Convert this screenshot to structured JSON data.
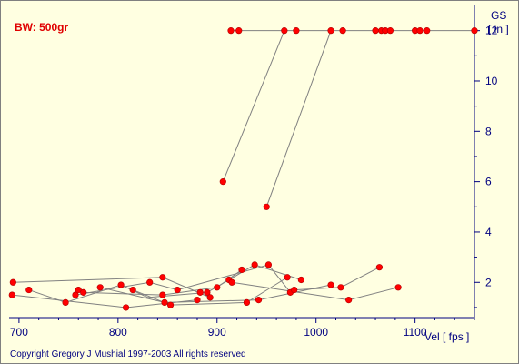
{
  "chart_data": {
    "type": "scatter",
    "title": "BW: 500gr",
    "xlabel": "Vel  [ fps ]",
    "ylabel_line1": "GS",
    "ylabel_line2": "[ in ]",
    "xlim": [
      690,
      1160
    ],
    "ylim": [
      0.6,
      13.0
    ],
    "x_ticks": [
      700,
      800,
      900,
      1000,
      1100
    ],
    "y_ticks": [
      2,
      4,
      6,
      8,
      10,
      12
    ],
    "y_axis_side": "right",
    "grid": false,
    "marker_color": "#ff0000",
    "line_color": "#808080",
    "points": [
      {
        "x": 694,
        "y": 2.0
      },
      {
        "x": 693,
        "y": 1.5
      },
      {
        "x": 710,
        "y": 1.7
      },
      {
        "x": 747,
        "y": 1.2
      },
      {
        "x": 757,
        "y": 1.5
      },
      {
        "x": 760,
        "y": 1.7
      },
      {
        "x": 765,
        "y": 1.6
      },
      {
        "x": 782,
        "y": 1.8
      },
      {
        "x": 803,
        "y": 1.9
      },
      {
        "x": 808,
        "y": 1.0
      },
      {
        "x": 815,
        "y": 1.7
      },
      {
        "x": 832,
        "y": 2.0
      },
      {
        "x": 845,
        "y": 2.2
      },
      {
        "x": 845,
        "y": 1.5
      },
      {
        "x": 847,
        "y": 1.2
      },
      {
        "x": 853,
        "y": 1.1
      },
      {
        "x": 860,
        "y": 1.7
      },
      {
        "x": 880,
        "y": 1.3
      },
      {
        "x": 883,
        "y": 1.6
      },
      {
        "x": 890,
        "y": 1.6
      },
      {
        "x": 893,
        "y": 1.4
      },
      {
        "x": 900,
        "y": 1.8
      },
      {
        "x": 906,
        "y": 6.0
      },
      {
        "x": 912,
        "y": 2.1
      },
      {
        "x": 914,
        "y": 12.0
      },
      {
        "x": 915,
        "y": 2.0
      },
      {
        "x": 922,
        "y": 12.0
      },
      {
        "x": 925,
        "y": 2.5
      },
      {
        "x": 930,
        "y": 1.2
      },
      {
        "x": 938,
        "y": 2.7
      },
      {
        "x": 942,
        "y": 1.3
      },
      {
        "x": 950,
        "y": 5.0
      },
      {
        "x": 952,
        "y": 2.7
      },
      {
        "x": 968,
        "y": 12.0
      },
      {
        "x": 971,
        "y": 2.2
      },
      {
        "x": 974,
        "y": 1.6
      },
      {
        "x": 978,
        "y": 1.7
      },
      {
        "x": 980,
        "y": 12.0
      },
      {
        "x": 985,
        "y": 2.1
      },
      {
        "x": 1015,
        "y": 1.9
      },
      {
        "x": 1015,
        "y": 12.0
      },
      {
        "x": 1025,
        "y": 1.8
      },
      {
        "x": 1027,
        "y": 12.0
      },
      {
        "x": 1033,
        "y": 1.3
      },
      {
        "x": 1060,
        "y": 12.0
      },
      {
        "x": 1064,
        "y": 2.6
      },
      {
        "x": 1066,
        "y": 12.0
      },
      {
        "x": 1070,
        "y": 12.0
      },
      {
        "x": 1075,
        "y": 12.0
      },
      {
        "x": 1083,
        "y": 1.8
      },
      {
        "x": 1100,
        "y": 12.0
      },
      {
        "x": 1105,
        "y": 12.0
      },
      {
        "x": 1112,
        "y": 12.0
      },
      {
        "x": 1160,
        "y": 12.0
      }
    ],
    "segments": [
      [
        [
          694,
          2.0
        ],
        [
          845,
          2.2
        ],
        [
          893,
          1.4
        ]
      ],
      [
        [
          693,
          1.5
        ],
        [
          808,
          1.0
        ],
        [
          880,
          1.3
        ]
      ],
      [
        [
          710,
          1.7
        ],
        [
          747,
          1.2
        ],
        [
          803,
          1.9
        ],
        [
          830,
          1.4
        ],
        [
          890,
          1.6
        ],
        [
          912,
          2.1
        ],
        [
          938,
          2.7
        ],
        [
          985,
          2.1
        ]
      ],
      [
        [
          757,
          1.5
        ],
        [
          832,
          2.0
        ],
        [
          860,
          1.7
        ],
        [
          952,
          2.7
        ],
        [
          974,
          1.6
        ]
      ],
      [
        [
          765,
          1.6
        ],
        [
          845,
          1.5
        ],
        [
          900,
          1.8
        ],
        [
          925,
          2.5
        ]
      ],
      [
        [
          782,
          1.8
        ],
        [
          847,
          1.2
        ],
        [
          942,
          1.3
        ],
        [
          1015,
          1.9
        ]
      ],
      [
        [
          815,
          1.7
        ],
        [
          853,
          1.1
        ],
        [
          930,
          1.2
        ],
        [
          971,
          2.2
        ]
      ],
      [
        [
          915,
          2.0
        ],
        [
          1033,
          1.3
        ],
        [
          1083,
          1.8
        ]
      ],
      [
        [
          978,
          1.7
        ],
        [
          1025,
          1.8
        ],
        [
          1064,
          2.6
        ]
      ],
      [
        [
          906,
          6.0
        ],
        [
          968,
          12.0
        ]
      ],
      [
        [
          950,
          5.0
        ],
        [
          1015,
          12.0
        ]
      ],
      [
        [
          914,
          12.0
        ],
        [
          1160,
          12.0
        ]
      ]
    ]
  },
  "footer": {
    "copyright": "Copyright Gregory J Mushial 1997-2003   All rights reserved"
  }
}
